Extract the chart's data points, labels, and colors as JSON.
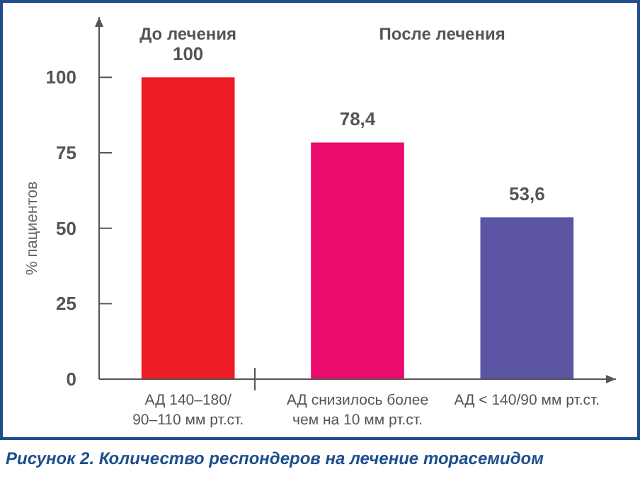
{
  "chart_data": {
    "type": "bar",
    "ylabel": "% пациентов",
    "categories": [
      "АД 140–180/ 90–110 мм рт.ст.",
      "АД снизилось более чем на 10 мм рт.ст.",
      "АД < 140/90 мм рт.ст."
    ],
    "values": [
      100,
      78.4,
      53.6
    ],
    "colors": [
      "#ec1c24",
      "#e90c6e",
      "#5b55a3"
    ],
    "value_labels": [
      "100",
      "78,4",
      "53,6"
    ],
    "ylim": [
      0,
      120
    ],
    "yticks": [
      0,
      25,
      50,
      75,
      100
    ],
    "grid": false,
    "annotations": [
      "До лечения",
      "После лечения",
      "Рисунок 2. Количество респондеров на лечение торасемидом"
    ]
  }
}
